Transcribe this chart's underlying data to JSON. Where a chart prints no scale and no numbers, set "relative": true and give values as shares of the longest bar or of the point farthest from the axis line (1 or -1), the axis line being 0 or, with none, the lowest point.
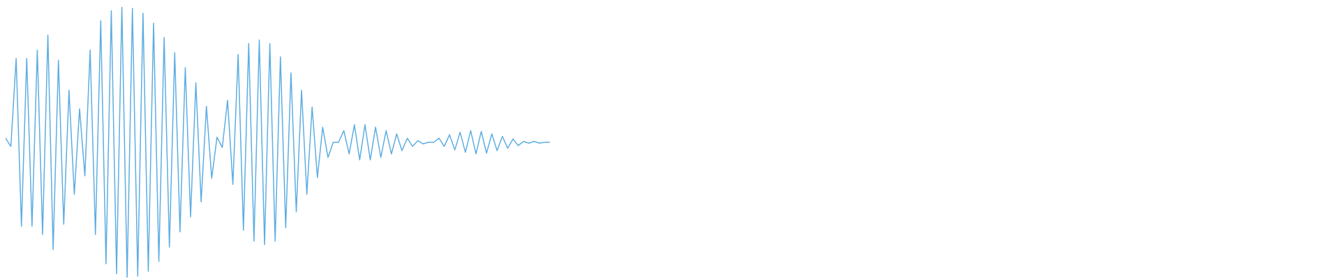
{
  "chart_data": {
    "type": "line",
    "relative": true,
    "categories": [
      null,
      null,
      null,
      null,
      null,
      null,
      null,
      null,
      null,
      null,
      null,
      null,
      null,
      null,
      null,
      null,
      null,
      null,
      null,
      null,
      null,
      null,
      null,
      null,
      null,
      null,
      null,
      null,
      null,
      null,
      null,
      null,
      null,
      null,
      null,
      null,
      null,
      null,
      null,
      null,
      null,
      null,
      null,
      null,
      null,
      null,
      null,
      null,
      null,
      null,
      null,
      null,
      null,
      null,
      null,
      null,
      null,
      null,
      null,
      null,
      null,
      null,
      null,
      null,
      null,
      null,
      null,
      null,
      null,
      null,
      null,
      null,
      null,
      null,
      null,
      null,
      null,
      null,
      null,
      null,
      null,
      null,
      null,
      null,
      null,
      null,
      null,
      null,
      null,
      null,
      null,
      null,
      null,
      null,
      null,
      null,
      null,
      null,
      null,
      null,
      null,
      null,
      null,
      null
    ],
    "series": [
      {
        "color": "#5dade2",
        "values": [
          0.515,
          0.485,
          0.81,
          0.19,
          0.81,
          0.19,
          0.841,
          0.159,
          0.896,
          0.104,
          0.803,
          0.197,
          0.692,
          0.308,
          0.624,
          0.376,
          0.841,
          0.159,
          0.949,
          0.051,
          0.986,
          0.014,
          1,
          0,
          0.995,
          0.005,
          0.977,
          0.023,
          0.94,
          0.06,
          0.887,
          0.113,
          0.831,
          0.169,
          0.776,
          0.224,
          0.72,
          0.28,
          0.633,
          0.367,
          0.519,
          0.481,
          0.655,
          0.345,
          0.825,
          0.175,
          0.865,
          0.135,
          0.878,
          0.122,
          0.865,
          0.135,
          0.816,
          0.184,
          0.757,
          0.243,
          0.692,
          0.308,
          0.63,
          0.37,
          0.556,
          0.444,
          0.5,
          0.5,
          0.543,
          0.457,
          0.565,
          0.435,
          0.565,
          0.435,
          0.556,
          0.444,
          0.543,
          0.457,
          0.531,
          0.469,
          0.515,
          0.485,
          0.506,
          0.494,
          0.5,
          0.5,
          0.515,
          0.485,
          0.528,
          0.472,
          0.537,
          0.463,
          0.543,
          0.457,
          0.54,
          0.46,
          0.531,
          0.469,
          0.522,
          0.478,
          0.512,
          0.488,
          0.503,
          0.497,
          0.503,
          0.497,
          0.5,
          0.5
        ]
      }
    ]
  }
}
